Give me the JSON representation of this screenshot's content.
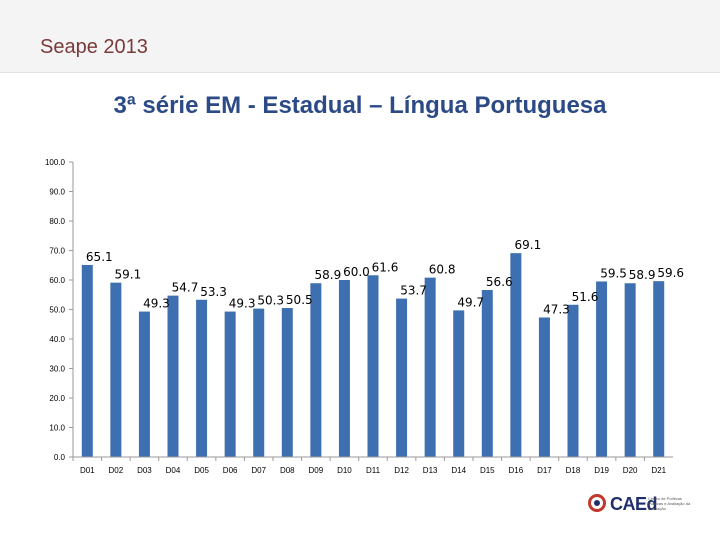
{
  "header": {
    "title": "Seape 2013"
  },
  "logo": {
    "name": "CAEd",
    "subtitle": "Centro de Políticas Públicas e Avaliação da Educação"
  },
  "chart_data": {
    "type": "bar",
    "title": "3ª série EM - Estadual – Língua Portuguesa",
    "xlabel": "",
    "ylabel": "",
    "ylim": [
      0,
      100
    ],
    "yticks": [
      "0.0",
      "10.0",
      "20.0",
      "30.0",
      "40.0",
      "50.0",
      "60.0",
      "70.0",
      "80.0",
      "90.0",
      "100.0"
    ],
    "categories": [
      "D01",
      "D02",
      "D03",
      "D04",
      "D05",
      "D06",
      "D07",
      "D08",
      "D09",
      "D10",
      "D11",
      "D12",
      "D13",
      "D14",
      "D15",
      "D16",
      "D17",
      "D18",
      "D19",
      "D20",
      "D21"
    ],
    "values": [
      65.1,
      59.1,
      49.3,
      54.7,
      53.3,
      49.3,
      50.3,
      50.5,
      58.9,
      60.0,
      61.6,
      53.7,
      60.8,
      49.7,
      56.6,
      69.1,
      47.3,
      51.6,
      59.5,
      58.9,
      59.6
    ],
    "labels": [
      "65.1",
      "59.1",
      "49.3",
      "54.7",
      "53.3",
      "49.3",
      "50.3",
      "50.5",
      "58.9",
      "60.0",
      "61.6",
      "53.7",
      "60.8",
      "49.7",
      "56.6",
      "69.1",
      "47.3",
      "51.6",
      "59.5",
      "58.9",
      "59.6"
    ],
    "color": "#3e6fb0",
    "grid": false
  }
}
